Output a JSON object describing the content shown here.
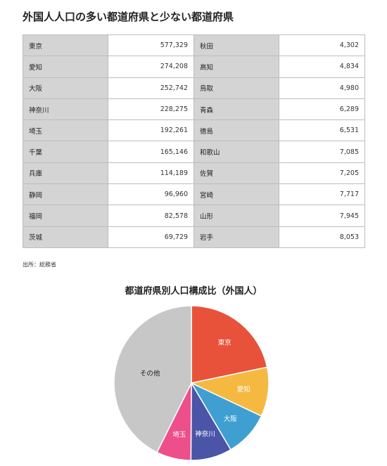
{
  "table": {
    "title": "外国人人口の多い都道府県と少ない都道府県",
    "source": "出所：総務省",
    "rows": [
      {
        "top_name": "東京",
        "top_value": "577,329",
        "low_name": "秋田",
        "low_value": "4,302"
      },
      {
        "top_name": "愛知",
        "top_value": "274,208",
        "low_name": "高知",
        "low_value": "4,834"
      },
      {
        "top_name": "大阪",
        "top_value": "252,742",
        "low_name": "鳥取",
        "low_value": "4,980"
      },
      {
        "top_name": "神奈川",
        "top_value": "228,275",
        "low_name": "青森",
        "low_value": "6,289"
      },
      {
        "top_name": "埼玉",
        "top_value": "192,261",
        "low_name": "徳島",
        "low_value": "6,531"
      },
      {
        "top_name": "千葉",
        "top_value": "165,146",
        "low_name": "和歌山",
        "low_value": "7,085"
      },
      {
        "top_name": "兵庫",
        "top_value": "114,189",
        "low_name": "佐賀",
        "low_value": "7,205"
      },
      {
        "top_name": "静岡",
        "top_value": "96,960",
        "low_name": "宮崎",
        "low_value": "7,717"
      },
      {
        "top_name": "福岡",
        "top_value": "82,578",
        "low_name": "山形",
        "low_value": "7,945"
      },
      {
        "top_name": "茨城",
        "top_value": "69,729",
        "low_name": "岩手",
        "low_value": "8,053"
      }
    ]
  },
  "chart_data": {
    "type": "pie",
    "title": "都道府県別人口構成比（外国人）",
    "categories": [
      "東京",
      "愛知",
      "大阪",
      "神奈川",
      "埼玉",
      "その他"
    ],
    "values": [
      577329,
      274208,
      252742,
      228275,
      192261,
      1135000
    ],
    "colors": [
      "#e8523a",
      "#f5b942",
      "#3f9fd1",
      "#4a55a8",
      "#ec4f8a",
      "#c7c7c7"
    ],
    "label_colors": [
      "#ffffff",
      "#ffffff",
      "#ffffff",
      "#ffffff",
      "#ffffff",
      "#222222"
    ]
  }
}
